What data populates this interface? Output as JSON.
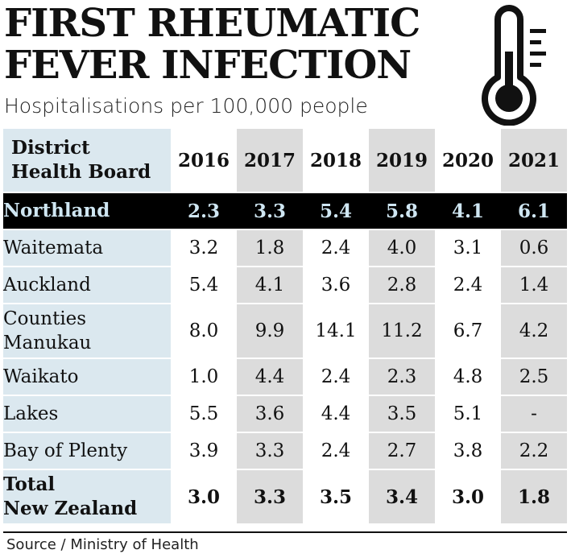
{
  "title_lines": [
    "FIRST RHEUMATIC",
    "FEVER INFECTION"
  ],
  "subtitle": "Hospitalisations per 100,000 people",
  "source": "Source / Ministry of Health",
  "icon": "thermometer-icon",
  "colors": {
    "highlight_bg": "#000000",
    "highlight_text": "#cfe6f2",
    "shade": "#dcdcdc",
    "name_col": "#dbe8ef"
  },
  "chart_data": {
    "type": "table",
    "header_lines": [
      "District",
      "Health Board"
    ],
    "columns": [
      "2016",
      "2017",
      "2018",
      "2019",
      "2020",
      "2021"
    ],
    "rows": [
      {
        "name_lines": [
          "Northland"
        ],
        "values": [
          "2.3",
          "3.3",
          "5.4",
          "5.8",
          "4.1",
          "6.1"
        ]
      },
      {
        "name_lines": [
          "Waitemata"
        ],
        "values": [
          "3.2",
          "1.8",
          "2.4",
          "4.0",
          "3.1",
          "0.6"
        ]
      },
      {
        "name_lines": [
          "Auckland"
        ],
        "values": [
          "5.4",
          "4.1",
          "3.6",
          "2.8",
          "2.4",
          "1.4"
        ]
      },
      {
        "name_lines": [
          "Counties",
          "Manukau"
        ],
        "values": [
          "8.0",
          "9.9",
          "14.1",
          "11.2",
          "6.7",
          "4.2"
        ]
      },
      {
        "name_lines": [
          "Waikato"
        ],
        "values": [
          "1.0",
          "4.4",
          "2.4",
          "2.3",
          "4.8",
          "2.5"
        ]
      },
      {
        "name_lines": [
          "Lakes"
        ],
        "values": [
          "5.5",
          "3.6",
          "4.4",
          "3.5",
          "5.1",
          "-"
        ]
      },
      {
        "name_lines": [
          "Bay of Plenty"
        ],
        "values": [
          "3.9",
          "3.3",
          "2.4",
          "2.7",
          "3.8",
          "2.2"
        ]
      },
      {
        "name_lines": [
          "Total",
          "New Zealand"
        ],
        "values": [
          "3.0",
          "3.3",
          "3.5",
          "3.4",
          "3.0",
          "1.8"
        ]
      }
    ]
  }
}
